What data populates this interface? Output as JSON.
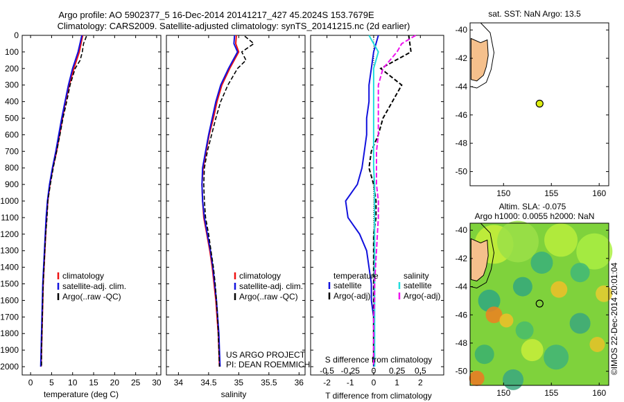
{
  "header": {
    "line1": "Argo profile: AO 5902377_5 16-Dec-2014 20141217_427 45.2024S 153.7679E",
    "line2": "Climatology: CARS2009. Satellite-adjusted climatology: synTS_20141215.nc (2d earlier)"
  },
  "colors": {
    "climatology": "#ee1111",
    "satellite": "#1111dd",
    "argo": "#000000",
    "sat_salinity": "#22dddd",
    "argo_adj_salinity": "#ee11ee",
    "land": "#f5c08c",
    "marker": "#ddee11"
  },
  "credit": {
    "project": "US ARGO PROJECT",
    "pi": "PI: DEAN ROEMMICH",
    "stamp": "©IMOS 22-Dec-2014 20:01:04"
  },
  "chart_data": [
    {
      "type": "line",
      "panel": "temperature",
      "xlabel": "temperature (deg C)",
      "ylim": [
        2050,
        0
      ],
      "xlim": [
        -2,
        31
      ],
      "xticks": [
        0,
        5,
        10,
        15,
        20,
        25,
        30
      ],
      "yticks": [
        0,
        100,
        200,
        300,
        400,
        500,
        600,
        700,
        800,
        900,
        1000,
        1100,
        1200,
        1300,
        1400,
        1500,
        1600,
        1700,
        1800,
        1900,
        2000
      ],
      "legend": [
        "climatology",
        "satellite-adj. clim.",
        "Argo(..raw -QC)"
      ],
      "series": [
        {
          "name": "climatology",
          "depth": [
            0,
            100,
            200,
            300,
            400,
            500,
            600,
            700,
            800,
            900,
            1000,
            1100,
            1200,
            1300,
            1400,
            1500,
            1600,
            1700,
            1800,
            1900,
            2000
          ],
          "values": [
            12.4,
            11.6,
            10.3,
            9.2,
            8.3,
            7.6,
            6.9,
            6.2,
            5.3,
            4.6,
            4.1,
            3.8,
            3.6,
            3.4,
            3.2,
            3.0,
            2.9,
            2.8,
            2.7,
            2.6,
            2.5
          ]
        },
        {
          "name": "satellite-adj. clim.",
          "depth": [
            0,
            100,
            200,
            300,
            400,
            500,
            600,
            700,
            800,
            900,
            1000,
            1100,
            1200,
            1300,
            1400,
            1500,
            1600,
            1700,
            1800,
            1900,
            2000
          ],
          "values": [
            12.2,
            11.3,
            10.0,
            9.0,
            8.2,
            7.4,
            6.7,
            6.0,
            5.2,
            4.5,
            4.0,
            3.7,
            3.5,
            3.3,
            3.1,
            2.9,
            2.8,
            2.7,
            2.6,
            2.5,
            2.4
          ]
        },
        {
          "name": "Argo(..raw -QC)",
          "depth": [
            5,
            50,
            100,
            150,
            200,
            300,
            400,
            500,
            600,
            700,
            800,
            900,
            1000,
            1100,
            1200,
            1300,
            1400,
            1500,
            1600,
            1700,
            1800,
            1900,
            2000
          ],
          "values": [
            13.3,
            12.6,
            12.3,
            11.8,
            10.6,
            9.4,
            8.6,
            7.7,
            7.0,
            6.2,
            5.4,
            4.7,
            4.1,
            3.9,
            3.6,
            3.4,
            3.2,
            3.0,
            2.9,
            2.8,
            2.7,
            2.6,
            2.6
          ]
        }
      ]
    },
    {
      "type": "line",
      "panel": "salinity",
      "xlabel": "salinity",
      "ylim": [
        2050,
        0
      ],
      "xlim": [
        33.8,
        36.1
      ],
      "xticks": [
        34,
        34.5,
        35,
        35.5,
        36
      ],
      "legend": [
        "climatology",
        "satellite-adj. clim.",
        "Argo(..raw -QC)"
      ],
      "series": [
        {
          "name": "climatology",
          "depth": [
            0,
            50,
            100,
            200,
            300,
            400,
            500,
            600,
            700,
            800,
            900,
            1000,
            1100,
            1200,
            1300,
            1400,
            1500,
            1600,
            1700,
            1800,
            1900,
            2000
          ],
          "values": [
            34.96,
            34.95,
            35.0,
            34.85,
            34.72,
            34.64,
            34.58,
            34.51,
            34.46,
            34.41,
            34.39,
            34.4,
            34.42,
            34.47,
            34.52,
            34.56,
            34.59,
            34.62,
            34.64,
            34.66,
            34.67,
            34.68
          ]
        },
        {
          "name": "satellite-adj. clim.",
          "depth": [
            0,
            50,
            100,
            200,
            300,
            400,
            500,
            600,
            700,
            800,
            900,
            1000,
            1100,
            1200,
            1300,
            1400,
            1500,
            1600,
            1700,
            1800,
            1900,
            2000
          ],
          "values": [
            34.93,
            34.92,
            34.98,
            34.83,
            34.7,
            34.62,
            34.56,
            34.5,
            34.45,
            34.4,
            34.39,
            34.4,
            34.43,
            34.48,
            34.53,
            34.57,
            34.6,
            34.63,
            34.65,
            34.67,
            34.68,
            34.69
          ]
        },
        {
          "name": "Argo(..raw -QC)",
          "depth": [
            5,
            50,
            100,
            150,
            200,
            300,
            400,
            500,
            600,
            700,
            800,
            900,
            1000,
            1100,
            1200,
            1300,
            1400,
            1500,
            1600,
            1700,
            1800,
            1900,
            2000
          ],
          "values": [
            35.1,
            35.25,
            35.05,
            35.12,
            34.98,
            34.82,
            34.7,
            34.62,
            34.55,
            34.48,
            34.43,
            34.42,
            34.43,
            34.45,
            34.5,
            34.54,
            34.58,
            34.61,
            34.63,
            34.65,
            34.66,
            34.67,
            34.68
          ]
        }
      ]
    },
    {
      "type": "line",
      "panel": "differences",
      "xlabel": "T difference from climatology",
      "xlabel_secondary": "S difference from climatology",
      "xlim": [
        -2.7,
        3.0
      ],
      "xticks": [
        -2,
        -1,
        0,
        1,
        2
      ],
      "xticks_secondary": [
        -0.5,
        -0.25,
        0,
        0.25,
        0.5
      ],
      "legend_titles": [
        "temperature",
        "salinity"
      ],
      "legend": [
        "satellite",
        "Argo(-adj)",
        "satellite",
        "Argo(-adj)"
      ],
      "series": [
        {
          "name": "temperature satellite",
          "depth": [
            0,
            100,
            200,
            300,
            400,
            500,
            600,
            700,
            800,
            900,
            1000,
            1100,
            1200,
            1300,
            1400,
            1500,
            1600,
            1700,
            1800,
            1900,
            2000
          ],
          "values": [
            0.2,
            0.0,
            -0.1,
            -0.2,
            -0.2,
            -0.3,
            -0.3,
            -0.4,
            -0.5,
            -0.7,
            -1.2,
            -1.1,
            -0.6,
            -0.3,
            -0.2,
            -0.1,
            -0.1,
            0.0,
            0.0,
            0.0,
            0.0
          ]
        },
        {
          "name": "temperature Argo(-adj)",
          "depth": [
            0,
            100,
            200,
            300,
            400,
            500,
            600,
            700,
            800,
            900,
            1000,
            1100,
            1200,
            1300,
            1400,
            1500,
            1600,
            1700,
            1800,
            1900,
            2000
          ],
          "values": [
            1.5,
            1.6,
            0.3,
            1.2,
            0.8,
            0.4,
            0.2,
            -0.1,
            -0.2,
            0.0,
            0.1,
            0.1,
            0.0,
            0.0,
            0.0,
            0.0,
            0.0,
            0.0,
            0.0,
            0.0,
            0.0
          ]
        },
        {
          "name": "salinity satellite",
          "depth": [
            0,
            100,
            200,
            300,
            400,
            500,
            600,
            700,
            800,
            900,
            1000,
            1100,
            1200,
            1300,
            1400,
            1500,
            1600,
            1700,
            1800,
            1900,
            2000
          ],
          "values": [
            -0.05,
            0.05,
            0.0,
            0.0,
            0.0,
            0.0,
            0.0,
            0.0,
            0.0,
            0.01,
            0.01,
            0.01,
            0.01,
            0.01,
            0.01,
            0.01,
            0.01,
            0.01,
            0.01,
            0.01,
            0.01
          ]
        },
        {
          "name": "salinity Argo(-adj)",
          "depth": [
            0,
            50,
            100,
            200,
            300,
            400,
            500,
            600,
            700,
            800,
            900,
            1000,
            1100,
            1200,
            1300,
            1400,
            1500,
            1600,
            1700,
            1800,
            1900,
            2000
          ],
          "values": [
            0.45,
            0.3,
            0.25,
            0.1,
            0.05,
            0.05,
            0.05,
            0.05,
            0.03,
            0.03,
            0.03,
            0.05,
            0.05,
            0.04,
            0.03,
            0.02,
            0.01,
            0.01,
            0.0,
            0.0,
            0.0,
            0.0
          ]
        }
      ]
    },
    {
      "type": "map",
      "panel": "sst-map",
      "title": "sat. SST: NaN Argo: 13.5",
      "xlim": [
        146.5,
        161
      ],
      "ylim": [
        -51,
        -39.5
      ],
      "xticks": [
        150,
        155,
        160
      ],
      "yticks": [
        -40,
        -42,
        -44,
        -46,
        -48,
        -50
      ],
      "float_position": {
        "lon": 153.77,
        "lat": -45.2
      }
    },
    {
      "type": "heatmap",
      "panel": "sla-map",
      "title_line1": "Altim. SLA: -0.075",
      "title_line2": "Argo h1000: 0.0055 h2000: NaN",
      "xlim": [
        146.5,
        161
      ],
      "ylim": [
        -51,
        -39.5
      ],
      "xticks": [
        150,
        155,
        160
      ],
      "yticks": [
        -40,
        -42,
        -44,
        -46,
        -48,
        -50
      ],
      "float_position": {
        "lon": 153.77,
        "lat": -45.2
      }
    }
  ]
}
